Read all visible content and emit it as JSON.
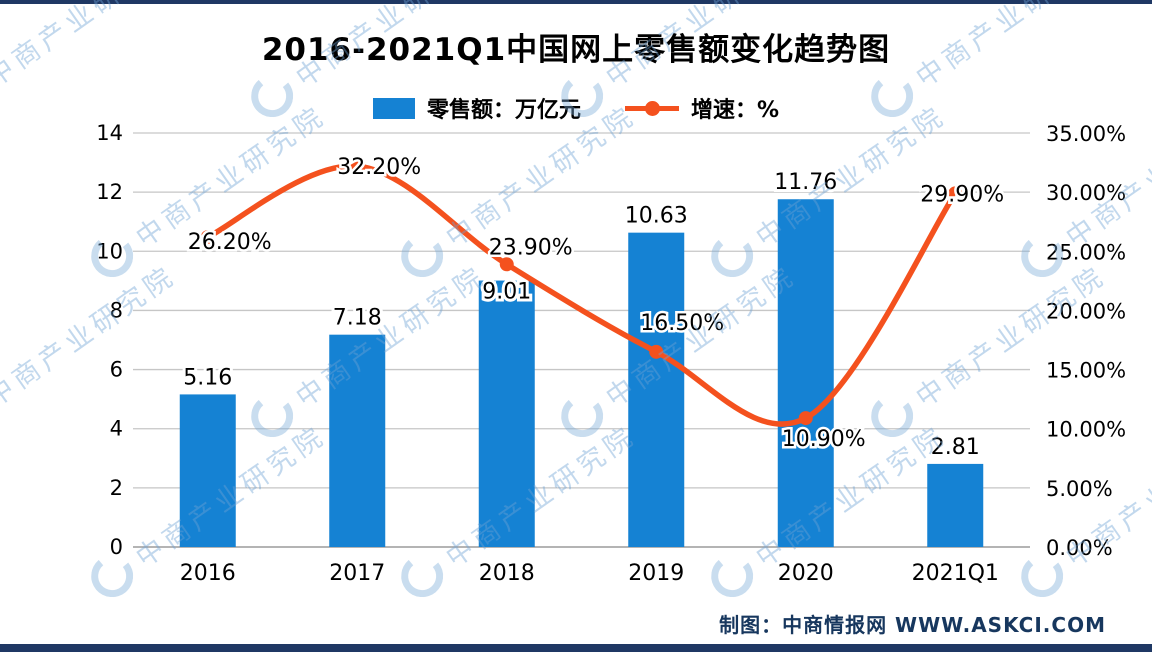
{
  "page": {
    "title": "2016-2021Q1中国网上零售额变化趋势图",
    "credit": "制图：中商情报网 WWW.ASKCI.COM",
    "watermark_text": "中商产业研究院",
    "colors": {
      "bar": "#1582d3",
      "line": "#f4511e",
      "navy": "#1f3864",
      "grid": "#c6c6c6",
      "axis": "#9b9b9b",
      "text": "#000000"
    }
  },
  "chart_data": {
    "type": "bar+line combo",
    "title": "2016-2021Q1中国网上零售额变化趋势图",
    "categories": [
      "2016",
      "2017",
      "2018",
      "2019",
      "2020",
      "2021Q1"
    ],
    "series": [
      {
        "name": "零售额：万亿元",
        "type": "bar",
        "axis": "left",
        "values": [
          5.16,
          7.18,
          9.01,
          10.63,
          11.76,
          2.81
        ],
        "labels": [
          "5.16",
          "7.18",
          "9.01",
          "10.63",
          "11.76",
          "2.81"
        ]
      },
      {
        "name": "增速：%",
        "type": "line",
        "axis": "right",
        "values": [
          26.2,
          32.2,
          23.9,
          16.5,
          10.9,
          29.9
        ],
        "labels": [
          "26.20%",
          "32.20%",
          "23.90%",
          "16.50%",
          "10.90%",
          "29.90%"
        ]
      }
    ],
    "left_axis": {
      "min": 0,
      "max": 14,
      "step": 2,
      "ticks": [
        "0",
        "2",
        "4",
        "6",
        "8",
        "10",
        "12",
        "14"
      ]
    },
    "right_axis": {
      "min": 0,
      "max": 35,
      "step": 5,
      "ticks": [
        "0.00%",
        "5.00%",
        "10.00%",
        "15.00%",
        "20.00%",
        "25.00%",
        "30.00%",
        "35.00%"
      ]
    },
    "legend": [
      {
        "label": "零售额：万亿元",
        "marker": "bar"
      },
      {
        "label": "增速：%",
        "marker": "line"
      }
    ],
    "grid": true,
    "legend_position": "top"
  }
}
